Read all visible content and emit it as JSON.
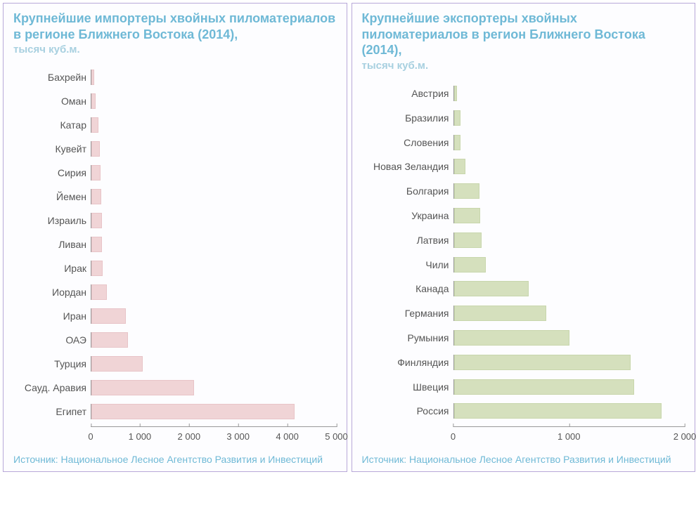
{
  "colors": {
    "title": "#6fb9d6",
    "subtitle": "#a8d0e0",
    "source": "#6fb9d6",
    "axis_text": "#555555",
    "border": "#b8a8d8"
  },
  "panels": [
    {
      "id": "importers",
      "title": "Крупнейшие импортеры хвойных пиломатериалов в регионе Ближнего Востока (2014),",
      "subtitle": "тысяч куб.м.",
      "type": "bar-horizontal",
      "bar_color": "#f0d4d6",
      "bar_border": "#e8c4c8",
      "label_width": 110,
      "x_axis": {
        "min": 0,
        "max": 5000,
        "ticks": [
          0,
          1000,
          2000,
          3000,
          4000,
          5000
        ],
        "tick_labels": [
          "0",
          "1 000",
          "2 000",
          "3 000",
          "4 000",
          "5 000"
        ]
      },
      "categories": [
        "Бахрейн",
        "Оман",
        "Катар",
        "Кувейт",
        "Сирия",
        "Йемен",
        "Израиль",
        "Ливан",
        "Ирак",
        "Иордан",
        "Иран",
        "ОАЭ",
        "Турция",
        "Сауд. Аравия",
        "Египет"
      ],
      "values": [
        60,
        90,
        140,
        170,
        180,
        200,
        210,
        220,
        230,
        320,
        700,
        750,
        1050,
        2100,
        4150
      ],
      "source": "Источник: Национальное Лесное Агентство Развития и Инвестиций"
    },
    {
      "id": "exporters",
      "title": "Крупнейшие экспортеры хвойных пиломатериалов в регион Ближнего Востока (2014),",
      "subtitle": "тысяч куб.м.",
      "type": "bar-horizontal",
      "bar_color": "#d5e0bd",
      "bar_border": "#c8d6ac",
      "label_width": 130,
      "x_axis": {
        "min": 0,
        "max": 2000,
        "ticks": [
          0,
          1000,
          2000
        ],
        "tick_labels": [
          "0",
          "1 000",
          "2 000"
        ]
      },
      "categories": [
        "Австрия",
        "Бразилия",
        "Словения",
        "Новая Зеландия",
        "Болгария",
        "Украина",
        "Латвия",
        "Чили",
        "Канада",
        "Германия",
        "Румыния",
        "Финляндия",
        "Швеция",
        "Россия"
      ],
      "values": [
        30,
        60,
        60,
        100,
        220,
        230,
        240,
        280,
        650,
        800,
        1000,
        1530,
        1560,
        1800
      ],
      "source": "Источник: Национальное Лесное Агентство Развития и Инвестиций"
    }
  ]
}
